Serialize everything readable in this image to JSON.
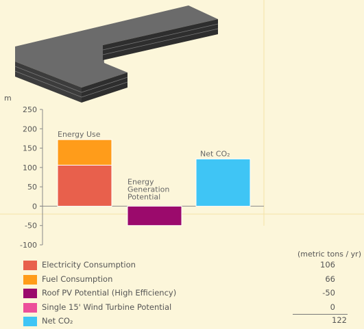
{
  "chart_data": {
    "type": "bar",
    "ylabel": "m",
    "ylim": [
      -100,
      250
    ],
    "yticks": [
      -100,
      -50,
      0,
      50,
      100,
      150,
      200,
      250
    ],
    "bars": [
      {
        "label": "Energy Use",
        "segments": [
          {
            "name": "Electricity Consumption",
            "value": 106,
            "color": "#e8604c"
          },
          {
            "name": "Fuel Consumption",
            "value": 66,
            "color": "#ff9c1a"
          }
        ]
      },
      {
        "label": "Energy Generation Potential",
        "segments": [
          {
            "name": "Roof PV Potential (High Efficiency)",
            "value": -50,
            "color": "#9b0a6c"
          }
        ]
      },
      {
        "label": "Net CO₂",
        "segments": [
          {
            "name": "Net CO₂",
            "value": 122,
            "color": "#3fc5f5"
          }
        ]
      }
    ],
    "legend": [
      {
        "label": "Electricity Consumption",
        "value": "106",
        "color": "#e8604c"
      },
      {
        "label": "Fuel Consumption",
        "value": "66",
        "color": "#ff9c1a"
      },
      {
        "label": "Roof PV Potential (High Efficiency)",
        "value": "-50",
        "color": "#9b0a6c"
      },
      {
        "label": "Single 15' Wind Turbine Potential",
        "value": "0",
        "color": "#ec4f9a"
      },
      {
        "label": "Net CO₂",
        "value": "",
        "color": "#3fc5f5"
      }
    ],
    "units": "(metric tons / yr)",
    "total": "122"
  },
  "colors": {
    "background": "#fcf6da",
    "model_top": "#6e6e6e",
    "model_side": "#3a3a3a",
    "grid": "#f0dc92"
  }
}
